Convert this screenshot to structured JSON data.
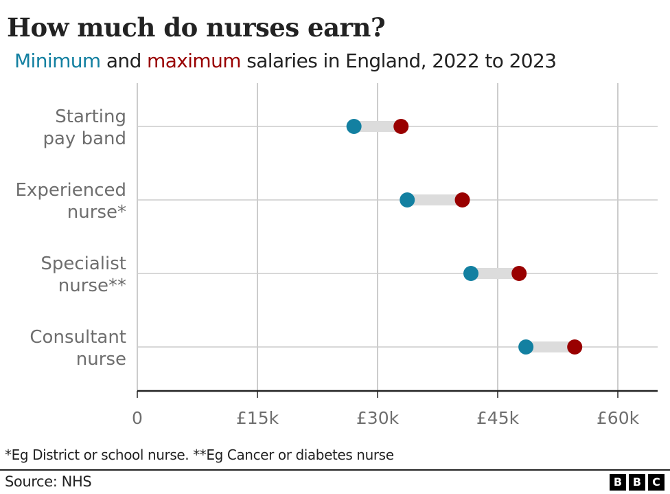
{
  "header": {
    "title": "How much do nurses earn?",
    "subtitle_min": "Minimum",
    "subtitle_and": " and ",
    "subtitle_max": "maximum",
    "subtitle_rest": " salaries in England, 2022 to 2023"
  },
  "colors": {
    "minimum": "#1380a1",
    "maximum": "#990000",
    "connector": "#dcdcdc",
    "grid": "#cccccc",
    "axis": "#222222"
  },
  "chart_data": {
    "type": "dumbbell",
    "title": "How much do nurses earn?",
    "subtitle": "Minimum and maximum salaries in England, 2022 to 2023",
    "categories": [
      [
        "Starting",
        "pay band"
      ],
      [
        "Experienced",
        "nurse*"
      ],
      [
        "Specialist",
        "nurse**"
      ],
      [
        "Consultant",
        "nurse"
      ]
    ],
    "series": [
      {
        "name": "Minimum",
        "values": [
          27055,
          33706,
          41659,
          48526
        ]
      },
      {
        "name": "Maximum",
        "values": [
          32934,
          40588,
          47672,
          54619
        ]
      }
    ],
    "xlim": [
      0,
      65000
    ],
    "xticks": [
      0,
      15000,
      30000,
      45000,
      60000
    ],
    "xtick_labels": [
      "0",
      "£15k",
      "£30k",
      "£45k",
      "£60k"
    ],
    "xlabel": "",
    "ylabel": "",
    "grid": true,
    "legend": "in subtitle"
  },
  "footer": {
    "footnote": "*Eg District or school nurse. **Eg Cancer or diabetes nurse",
    "source": "Source: NHS",
    "logo_letters": [
      "B",
      "B",
      "C"
    ]
  }
}
